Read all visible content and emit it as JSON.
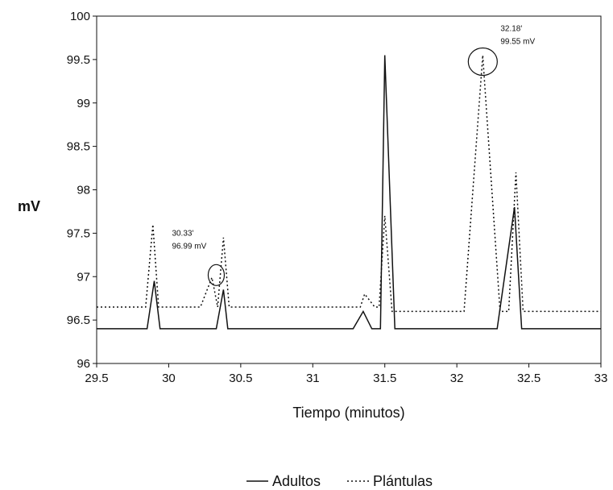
{
  "chart_data": {
    "type": "line",
    "title": "",
    "xlabel": "Tiempo (minutos)",
    "ylabel": "mV",
    "xlim": [
      29.5,
      33
    ],
    "ylim": [
      96,
      100
    ],
    "xticks": [
      "29.5",
      "30",
      "30.5",
      "31",
      "31.5",
      "32",
      "32.5",
      "33"
    ],
    "yticks": [
      "96",
      "96.5",
      "97",
      "97.5",
      "98",
      "98.5",
      "99",
      "99.5",
      "100"
    ],
    "grid": false,
    "legend_position": "bottom-center",
    "series": [
      {
        "name": "Adultos",
        "style": "solid",
        "color": "#111111",
        "points": [
          [
            29.5,
            96.4
          ],
          [
            29.85,
            96.4
          ],
          [
            29.9,
            96.95
          ],
          [
            29.94,
            96.4
          ],
          [
            30.33,
            96.4
          ],
          [
            30.38,
            96.85
          ],
          [
            30.41,
            96.4
          ],
          [
            31.28,
            96.4
          ],
          [
            31.35,
            96.6
          ],
          [
            31.41,
            96.4
          ],
          [
            31.47,
            96.4
          ],
          [
            31.5,
            99.55
          ],
          [
            31.57,
            96.4
          ],
          [
            32.28,
            96.4
          ],
          [
            32.4,
            97.8
          ],
          [
            32.45,
            96.4
          ],
          [
            33.0,
            96.4
          ]
        ]
      },
      {
        "name": "Plántulas",
        "style": "dotted",
        "color": "#111111",
        "points": [
          [
            29.5,
            96.65
          ],
          [
            29.84,
            96.65
          ],
          [
            29.89,
            97.6
          ],
          [
            29.93,
            96.65
          ],
          [
            30.22,
            96.65
          ],
          [
            30.3,
            96.99
          ],
          [
            30.34,
            96.65
          ],
          [
            30.38,
            97.45
          ],
          [
            30.42,
            96.65
          ],
          [
            31.33,
            96.65
          ],
          [
            31.36,
            96.8
          ],
          [
            31.43,
            96.65
          ],
          [
            31.46,
            96.65
          ],
          [
            31.5,
            97.7
          ],
          [
            31.55,
            96.6
          ],
          [
            32.05,
            96.6
          ],
          [
            32.18,
            99.55
          ],
          [
            32.3,
            96.6
          ],
          [
            32.36,
            96.6
          ],
          [
            32.41,
            98.2
          ],
          [
            32.46,
            96.6
          ],
          [
            33.0,
            96.6
          ]
        ]
      }
    ],
    "annotations": [
      {
        "line1": "30.33'",
        "line2": "96.99 mV",
        "x": 30.33,
        "y": 96.99
      },
      {
        "line1": "32.18'",
        "line2": "99.55 mV",
        "x": 32.18,
        "y": 99.55
      }
    ]
  }
}
